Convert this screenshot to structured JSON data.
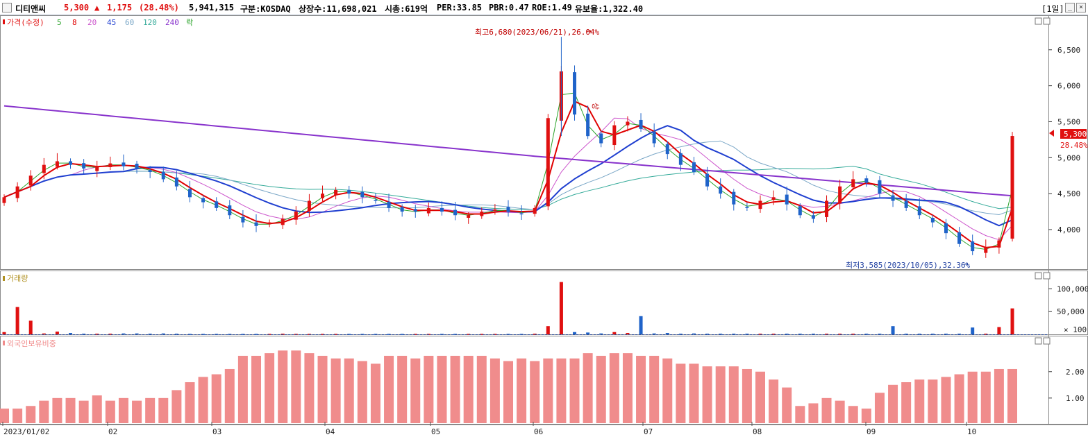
{
  "header": {
    "name": "디티앤씨",
    "price": "5,300",
    "arrow": "▲",
    "change": "1,175",
    "change_pct": "(28.48%)",
    "volume": "5,941,315",
    "market": "구분:KOSDAQ",
    "shares": "상장수:11,698,021",
    "mcap": "시총:619억",
    "per": "PER:33.85",
    "pbr": "PBR:0.47",
    "roe": "ROE:1.49",
    "retention": "유보율:1,322.40",
    "period": "[1일]",
    "btn_min": "_",
    "btn_close": "×"
  },
  "legend": {
    "price": "가격(수정)",
    "ma5": "5",
    "ma8": "8",
    "ma20": "20",
    "ma45": "45",
    "ma60": "60",
    "ma120": "120",
    "ma240": "240",
    "fall": "락",
    "volume": "거래량",
    "foreign": "외국인보유비중"
  },
  "colors": {
    "up": "#e01010",
    "down": "#1f63c9",
    "ma5": "#2aa32a",
    "ma8": "#e00000",
    "ma20": "#cc55cc",
    "ma45": "#1f3fd0",
    "ma60": "#7aa7c7",
    "ma120": "#33aa99",
    "ma240": "#8833cc",
    "foreign": "#f08c8c",
    "volume_label": "#b09020"
  },
  "annotations": {
    "high": "최고6,680(2023/06/21),26.04%",
    "low": "최저3,585(2023/10/05),32.36%",
    "limit_up": "상",
    "last_price": "5,300",
    "last_pct": "28.48%"
  },
  "chart_data": [
    {
      "type": "candlestick",
      "x": [
        "2023/01/02",
        "02",
        "03",
        "04",
        "05",
        "06",
        "07",
        "08",
        "09",
        "10"
      ],
      "x_tick_labels": [
        "2023/01/02",
        "02",
        "03",
        "04",
        "05",
        "06",
        "07",
        "08",
        "09",
        "10"
      ],
      "yticks": [
        "6,500",
        "6,000",
        "5,500",
        "5,000",
        "4,500",
        "4,000"
      ],
      "ylim": [
        3450,
        6980
      ],
      "high": {
        "date": "2023/06/21",
        "value": 6680
      },
      "low": {
        "date": "2023/10/05",
        "value": 3585
      },
      "last": 5300,
      "close_series": [
        4450,
        4600,
        4750,
        4900,
        4950,
        4900,
        4850,
        4880,
        4920,
        4880,
        4850,
        4800,
        4700,
        4600,
        4450,
        4380,
        4300,
        4200,
        4100,
        4050,
        4100,
        4150,
        4250,
        4400,
        4500,
        4550,
        4500,
        4450,
        4400,
        4300,
        4250,
        4250,
        4300,
        4250,
        4200,
        4200,
        4250,
        4280,
        4250,
        4220,
        4300,
        5550,
        6200,
        5600,
        5300,
        5200,
        5450,
        5500,
        5400,
        5200,
        5050,
        4900,
        4800,
        4600,
        4500,
        4350,
        4300,
        4400,
        4450,
        4350,
        4200,
        4150,
        4400,
        4600,
        4700,
        4650,
        4500,
        4400,
        4300,
        4200,
        4100,
        3950,
        3800,
        3700,
        3750,
        3850,
        5300
      ]
    },
    {
      "type": "bar",
      "title": "거래량",
      "yticks": [
        "100,000",
        "50,000",
        "× 100"
      ],
      "ylim": [
        0,
        125000
      ],
      "values": [
        5000,
        60000,
        30000,
        2000,
        6000,
        3000,
        1500,
        1500,
        1500,
        2000,
        2000,
        1500,
        2000,
        1500,
        1000,
        1000,
        1000,
        1000,
        1000,
        1000,
        1000,
        1500,
        1000,
        1000,
        1000,
        1000,
        1000,
        1000,
        1000,
        1000,
        1000,
        1000,
        1000,
        1000,
        1000,
        1000,
        1000,
        1000,
        1000,
        1000,
        1500,
        18000,
        115000,
        5000,
        4000,
        2000,
        5000,
        3000,
        40000,
        2000,
        3000,
        1500,
        2000,
        1500,
        1500,
        1500,
        1500,
        1500,
        1500,
        1500,
        1500,
        1500,
        1500,
        1500,
        1500,
        1500,
        1500,
        18000,
        1500,
        1500,
        1500,
        1500,
        1500,
        15000,
        1500,
        16000,
        57000
      ]
    },
    {
      "type": "bar",
      "title": "외국인보유비중",
      "yticks": [
        "2.00",
        "1.00"
      ],
      "ylim": [
        0.05,
        3.15
      ],
      "values": [
        0.6,
        0.6,
        0.7,
        0.9,
        1.0,
        1.0,
        0.9,
        1.1,
        0.9,
        1.0,
        0.9,
        1.0,
        1.0,
        1.3,
        1.6,
        1.8,
        1.9,
        2.1,
        2.6,
        2.6,
        2.7,
        2.8,
        2.8,
        2.7,
        2.6,
        2.5,
        2.5,
        2.4,
        2.3,
        2.6,
        2.6,
        2.5,
        2.6,
        2.6,
        2.6,
        2.6,
        2.6,
        2.5,
        2.4,
        2.5,
        2.4,
        2.5,
        2.5,
        2.5,
        2.7,
        2.6,
        2.7,
        2.7,
        2.6,
        2.6,
        2.5,
        2.3,
        2.3,
        2.2,
        2.2,
        2.2,
        2.1,
        2.0,
        1.7,
        1.4,
        0.7,
        0.8,
        1.0,
        0.9,
        0.7,
        0.6,
        1.2,
        1.5,
        1.6,
        1.7,
        1.7,
        1.8,
        1.9,
        2.0,
        2.0,
        2.1,
        2.1
      ]
    }
  ]
}
